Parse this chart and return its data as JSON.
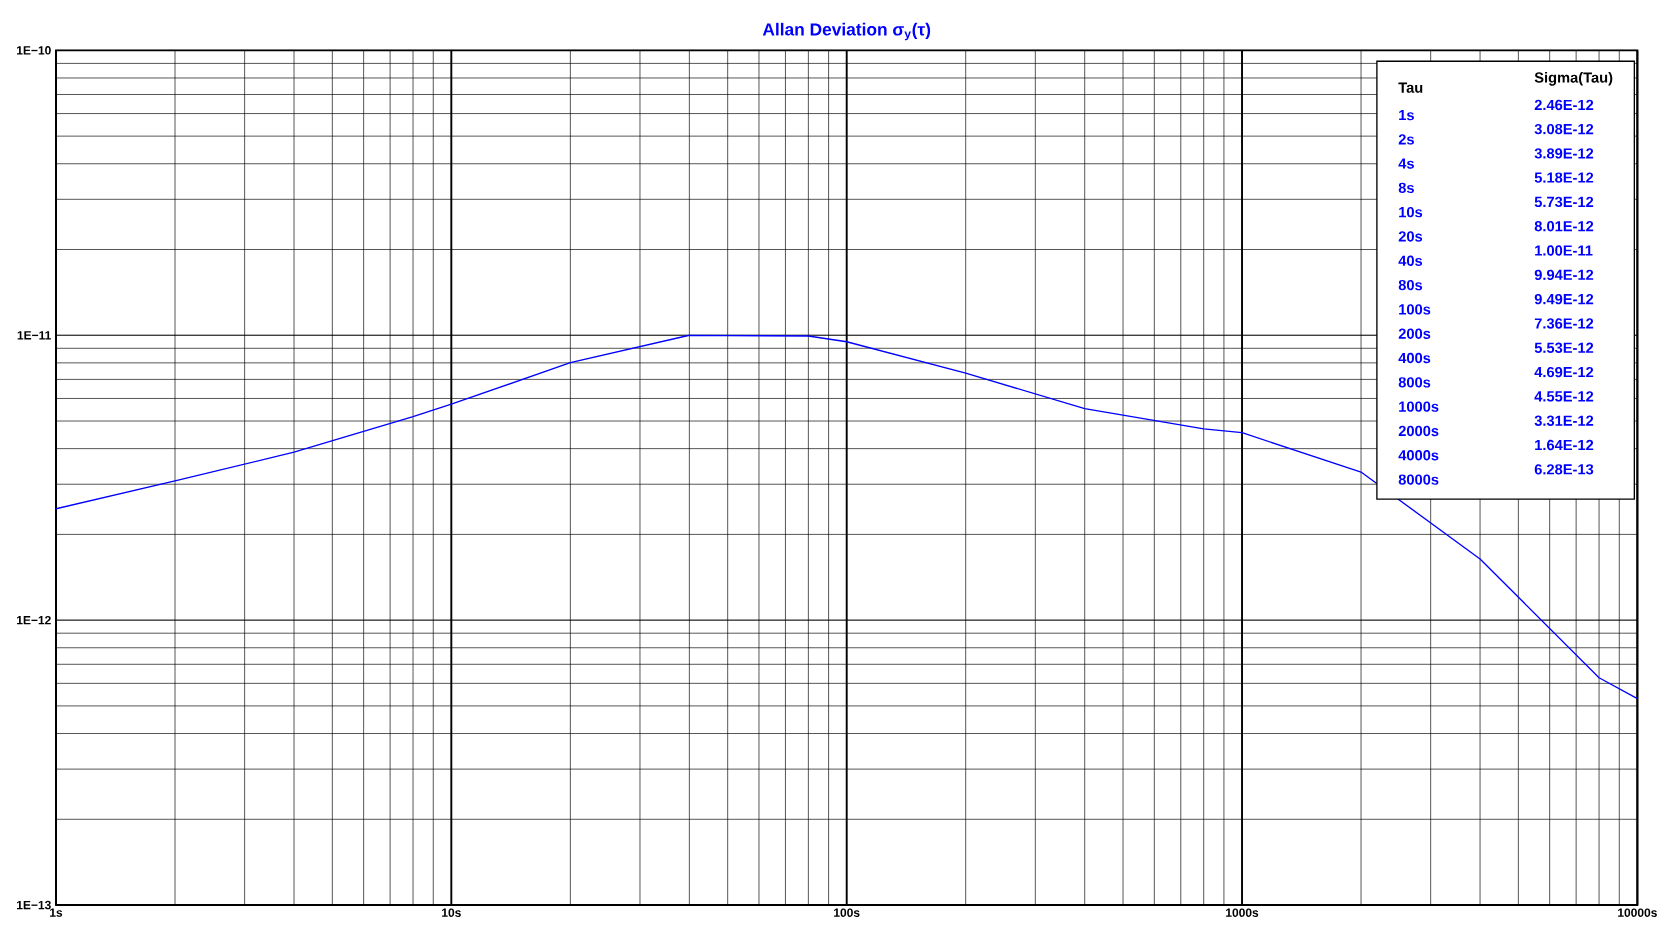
{
  "chart_data": {
    "type": "line",
    "title": "Allan Deviation σ$_{y}$(τ)",
    "x": [
      1,
      2,
      4,
      8,
      10,
      20,
      40,
      80,
      100,
      200,
      400,
      800,
      1000,
      2000,
      4000,
      8000,
      10000
    ],
    "series": [
      {
        "color": "#0000ff",
        "values": [
          2.46e-12,
          3.08e-12,
          3.89e-12,
          5.18e-12,
          5.73e-12,
          8.01e-12,
          1e-11,
          9.94e-12,
          9.49e-12,
          7.36e-12,
          5.53e-12,
          4.69e-12,
          4.55e-12,
          3.31e-12,
          1.64e-12,
          6.28e-13,
          5.3e-13
        ],
        "name": null
      }
    ],
    "annotations": [
      "Tau",
      "Sigma(Tau)",
      "1s",
      "2.46E-12",
      "2s",
      "3.08E-12",
      "4s",
      "3.89E-12",
      "8s",
      "5.18E-12",
      "10s",
      "5.73E-12",
      "20s",
      "8.01E-12",
      "40s",
      "1.00E-11",
      "80s",
      "9.94E-12",
      "100s",
      "9.49E-12",
      "200s",
      "7.36E-12",
      "400s",
      "5.53E-12",
      "800s",
      "4.69E-12",
      "1000s",
      "4.55E-12",
      "2000s",
      "3.31E-12",
      "4000s",
      "1.64E-12",
      "8000s",
      "6.28E-13"
    ],
    "log": "xy",
    "grid": true,
    "marker": "none",
    "line_style": "solid",
    "xlim": [
      1,
      10000
    ],
    "ylim": [
      1e-13,
      1e-10
    ],
    "xticks": [
      {
        "value": 1,
        "label": "1s"
      },
      {
        "value": 10,
        "label": "10s"
      },
      {
        "value": 100,
        "label": "100s"
      },
      {
        "value": 1000,
        "label": "1000s"
      },
      {
        "value": 10000,
        "label": "10000s"
      }
    ],
    "yticks": [
      {
        "value": 1e-13,
        "label": "1E−13"
      },
      {
        "value": 1e-12,
        "label": "1E−12"
      },
      {
        "value": 1e-11,
        "label": "1E−11"
      },
      {
        "value": 1e-10,
        "label": "1E−10"
      }
    ]
  }
}
